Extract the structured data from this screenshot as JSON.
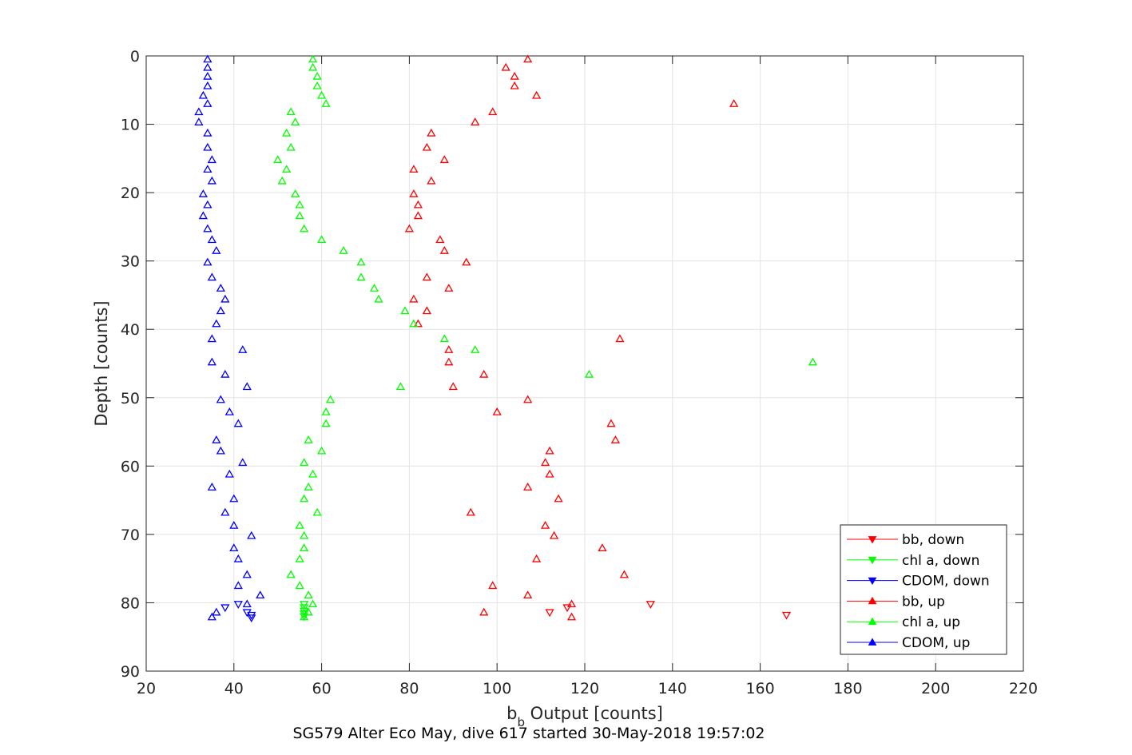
{
  "chart_data": {
    "type": "scatter",
    "xlabel_main": "b",
    "xlabel_sub": "b",
    "xlabel_rest": " Output [counts]",
    "ylabel": "Depth [counts]",
    "caption": "SG579 Alter Eco May, dive 617 started 30-May-2018 19:57:02",
    "xlim": [
      20,
      220
    ],
    "ylim": [
      0,
      90
    ],
    "y_reversed": true,
    "grid": true,
    "legend_position": "bottom-right",
    "xticks": [
      "20",
      "40",
      "60",
      "80",
      "100",
      "120",
      "140",
      "160",
      "180",
      "200",
      "220"
    ],
    "yticks": [
      "0",
      "10",
      "20",
      "30",
      "40",
      "50",
      "60",
      "70",
      "80",
      "90"
    ],
    "colors": {
      "red": "#ff0000",
      "green": "#00ff00",
      "blue": "#0000ff"
    },
    "series": [
      {
        "name": "bb, down",
        "color": "#ff0000",
        "marker": "triangle-down",
        "points": [
          [
            135,
            80.2
          ],
          [
            116,
            80.7
          ],
          [
            112,
            81.4
          ],
          [
            166,
            81.8
          ]
        ]
      },
      {
        "name": "chl a, down",
        "color": "#00ff00",
        "marker": "triangle-down",
        "points": [
          [
            56,
            80.2
          ],
          [
            56,
            80.7
          ],
          [
            56,
            81.2
          ],
          [
            56,
            81.6
          ],
          [
            56,
            82.0
          ]
        ]
      },
      {
        "name": "CDOM, down",
        "color": "#0000ff",
        "marker": "triangle-down",
        "points": [
          [
            41,
            80.2
          ],
          [
            38,
            80.7
          ],
          [
            43,
            81.4
          ],
          [
            44,
            81.8
          ],
          [
            44,
            82.2
          ]
        ]
      },
      {
        "name": "bb, up",
        "color": "#ff0000",
        "marker": "triangle-up",
        "points": [
          [
            107,
            0.5
          ],
          [
            102,
            1.7
          ],
          [
            104,
            3.0
          ],
          [
            104,
            4.4
          ],
          [
            109,
            5.8
          ],
          [
            154,
            7.0
          ],
          [
            99,
            8.2
          ],
          [
            95,
            9.7
          ],
          [
            85,
            11.3
          ],
          [
            84,
            13.4
          ],
          [
            88,
            15.2
          ],
          [
            81,
            16.6
          ],
          [
            85,
            18.3
          ],
          [
            81,
            20.2
          ],
          [
            82,
            21.8
          ],
          [
            82,
            23.4
          ],
          [
            80,
            25.3
          ],
          [
            87,
            26.9
          ],
          [
            88,
            28.5
          ],
          [
            93,
            30.2
          ],
          [
            84,
            32.4
          ],
          [
            89,
            34.0
          ],
          [
            81,
            35.6
          ],
          [
            84,
            37.3
          ],
          [
            82,
            39.2
          ],
          [
            128,
            41.4
          ],
          [
            89,
            43.0
          ],
          [
            89,
            44.8
          ],
          [
            97,
            46.6
          ],
          [
            90,
            48.4
          ],
          [
            107,
            50.3
          ],
          [
            100,
            52.1
          ],
          [
            126,
            53.8
          ],
          [
            127,
            56.2
          ],
          [
            112,
            57.8
          ],
          [
            111,
            59.5
          ],
          [
            112,
            61.2
          ],
          [
            107,
            63.1
          ],
          [
            114,
            64.8
          ],
          [
            94,
            66.8
          ],
          [
            111,
            68.7
          ],
          [
            113,
            70.2
          ],
          [
            124,
            72.0
          ],
          [
            109,
            73.6
          ],
          [
            129,
            75.9
          ],
          [
            99,
            77.5
          ],
          [
            107,
            78.9
          ],
          [
            117,
            80.2
          ],
          [
            97,
            81.4
          ],
          [
            117,
            82.1
          ]
        ]
      },
      {
        "name": "chl a, up",
        "color": "#00ff00",
        "marker": "triangle-up",
        "points": [
          [
            58,
            0.5
          ],
          [
            58,
            1.7
          ],
          [
            59,
            3.0
          ],
          [
            59,
            4.4
          ],
          [
            60,
            5.8
          ],
          [
            61,
            7.0
          ],
          [
            53,
            8.2
          ],
          [
            54,
            9.7
          ],
          [
            52,
            11.3
          ],
          [
            53,
            13.4
          ],
          [
            50,
            15.2
          ],
          [
            52,
            16.6
          ],
          [
            51,
            18.3
          ],
          [
            54,
            20.2
          ],
          [
            55,
            21.8
          ],
          [
            55,
            23.4
          ],
          [
            56,
            25.3
          ],
          [
            60,
            26.9
          ],
          [
            65,
            28.5
          ],
          [
            69,
            30.2
          ],
          [
            69,
            32.4
          ],
          [
            72,
            34.0
          ],
          [
            73,
            35.6
          ],
          [
            79,
            37.3
          ],
          [
            81,
            39.2
          ],
          [
            88,
            41.4
          ],
          [
            95,
            43.0
          ],
          [
            172,
            44.8
          ],
          [
            121,
            46.6
          ],
          [
            78,
            48.4
          ],
          [
            62,
            50.3
          ],
          [
            61,
            52.1
          ],
          [
            61,
            53.8
          ],
          [
            57,
            56.2
          ],
          [
            60,
            57.8
          ],
          [
            56,
            59.5
          ],
          [
            58,
            61.2
          ],
          [
            57,
            63.1
          ],
          [
            56,
            64.8
          ],
          [
            59,
            66.8
          ],
          [
            55,
            68.7
          ],
          [
            56,
            70.2
          ],
          [
            56,
            72.0
          ],
          [
            55,
            73.6
          ],
          [
            53,
            75.9
          ],
          [
            55,
            77.5
          ],
          [
            57,
            78.9
          ],
          [
            58,
            80.2
          ],
          [
            57,
            81.4
          ],
          [
            56,
            82.1
          ]
        ]
      },
      {
        "name": "CDOM, up",
        "color": "#0000ff",
        "marker": "triangle-up",
        "points": [
          [
            34,
            0.5
          ],
          [
            34,
            1.7
          ],
          [
            34,
            3.0
          ],
          [
            34,
            4.4
          ],
          [
            33,
            5.8
          ],
          [
            34,
            7.0
          ],
          [
            32,
            8.2
          ],
          [
            32,
            9.7
          ],
          [
            34,
            11.3
          ],
          [
            34,
            13.4
          ],
          [
            35,
            15.2
          ],
          [
            34,
            16.6
          ],
          [
            35,
            18.3
          ],
          [
            33,
            20.2
          ],
          [
            34,
            21.8
          ],
          [
            33,
            23.4
          ],
          [
            34,
            25.3
          ],
          [
            35,
            26.9
          ],
          [
            36,
            28.5
          ],
          [
            34,
            30.2
          ],
          [
            35,
            32.4
          ],
          [
            37,
            34.0
          ],
          [
            38,
            35.6
          ],
          [
            37,
            37.3
          ],
          [
            36,
            39.2
          ],
          [
            35,
            41.4
          ],
          [
            42,
            43.0
          ],
          [
            35,
            44.8
          ],
          [
            38,
            46.6
          ],
          [
            43,
            48.4
          ],
          [
            37,
            50.3
          ],
          [
            39,
            52.1
          ],
          [
            41,
            53.8
          ],
          [
            36,
            56.2
          ],
          [
            37,
            57.8
          ],
          [
            42,
            59.5
          ],
          [
            39,
            61.2
          ],
          [
            35,
            63.1
          ],
          [
            40,
            64.8
          ],
          [
            38,
            66.8
          ],
          [
            40,
            68.7
          ],
          [
            44,
            70.2
          ],
          [
            40,
            72.0
          ],
          [
            41,
            73.6
          ],
          [
            43,
            75.9
          ],
          [
            41,
            77.5
          ],
          [
            46,
            78.9
          ],
          [
            43,
            80.2
          ],
          [
            36,
            81.4
          ],
          [
            35,
            82.1
          ]
        ]
      }
    ]
  }
}
